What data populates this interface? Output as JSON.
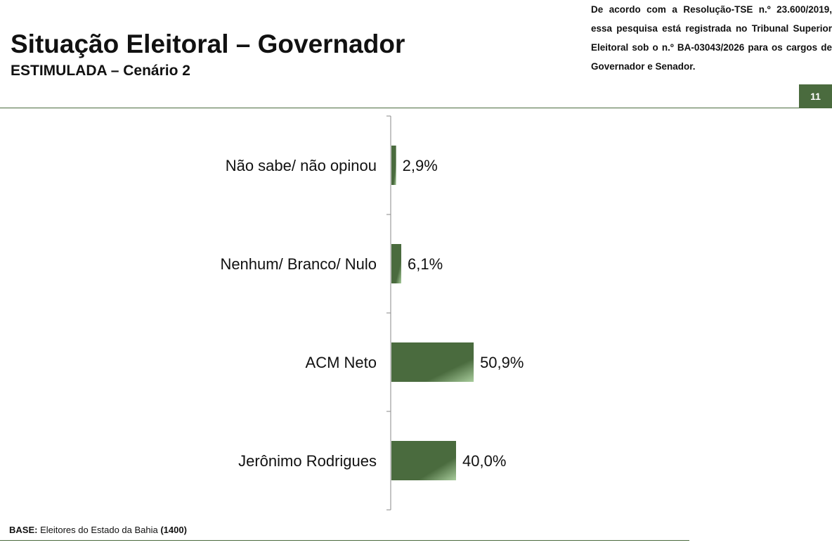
{
  "header": {
    "title": "Situação Eleitoral – Governador",
    "subtitle": "ESTIMULADA – Cenário 2",
    "notice": "De acordo com a Resolução-TSE n.º 23.600/2019, essa pesquisa está registrada no Tribunal Superior Eleitoral sob o n.º BA-03043/2026 para os cargos de Governador e Senador.",
    "page_number": "11"
  },
  "footer": {
    "base_label": "BASE:",
    "base_text": " Eleitores do Estado da Bahia ",
    "base_count": "(1400)"
  },
  "colors": {
    "accent": "#4a6b3e",
    "bar_dark": "#4a6b3e",
    "bar_light": "#a8cc9c"
  },
  "chart_data": {
    "type": "bar",
    "orientation": "horizontal",
    "categories": [
      "Não sabe/ não opinou",
      "Nenhum/ Branco/ Nulo",
      "ACM Neto",
      "Jerônimo Rodrigues"
    ],
    "values": [
      2.9,
      6.1,
      50.9,
      40.0
    ],
    "data_labels": [
      "2,9%",
      "6,1%",
      "50,9%",
      "40,0%"
    ],
    "unit": "%",
    "xlim": [
      0,
      100
    ],
    "grid": false,
    "legend": "none"
  }
}
